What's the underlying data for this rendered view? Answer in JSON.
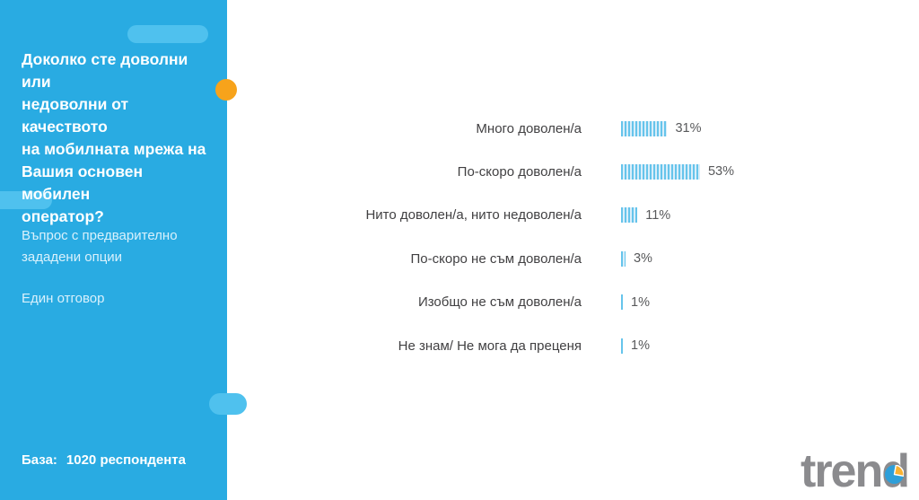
{
  "sidebar": {
    "question": "Доколко сте доволни или\nнедоволни от качеството\nна мобилната мрежа на\nВашия основен мобилен\nоператор?",
    "note": "Въпрос с предварително\nзададени опции",
    "answer_type": "Един отговор",
    "base_label": "База:",
    "base_value": "1020 респондента"
  },
  "chart_data": {
    "type": "bar",
    "orientation": "horizontal",
    "title": "",
    "categories": [
      "Много доволен/а",
      "По-скоро доволен/а",
      "Нито доволен/а, нито недоволен/а",
      "По-скоро не съм доволен/а",
      "Изобщо не съм доволен/а",
      "Не знам/ Не мога да преценя"
    ],
    "values": [
      31,
      53,
      11,
      3,
      1,
      1
    ],
    "value_suffix": "%",
    "xlim": [
      0,
      60
    ],
    "grid": false,
    "legend": false,
    "bar_style": "vertical-stripes"
  },
  "logo": {
    "text": "trend"
  },
  "colors": {
    "sidebar_blue": "#29abe2",
    "pill_blue": "#4fc1ee",
    "dot_yellow": "#f7a31b",
    "bar_stripe": "#66c4eb",
    "bar_stripe_light": "#d9eefa",
    "label_text": "#414042",
    "value_text": "#58595b",
    "logo_gray": "#8b8b8e",
    "logo_pie_blue": "#2e9fd9",
    "logo_pie_yellow": "#f9b233"
  }
}
